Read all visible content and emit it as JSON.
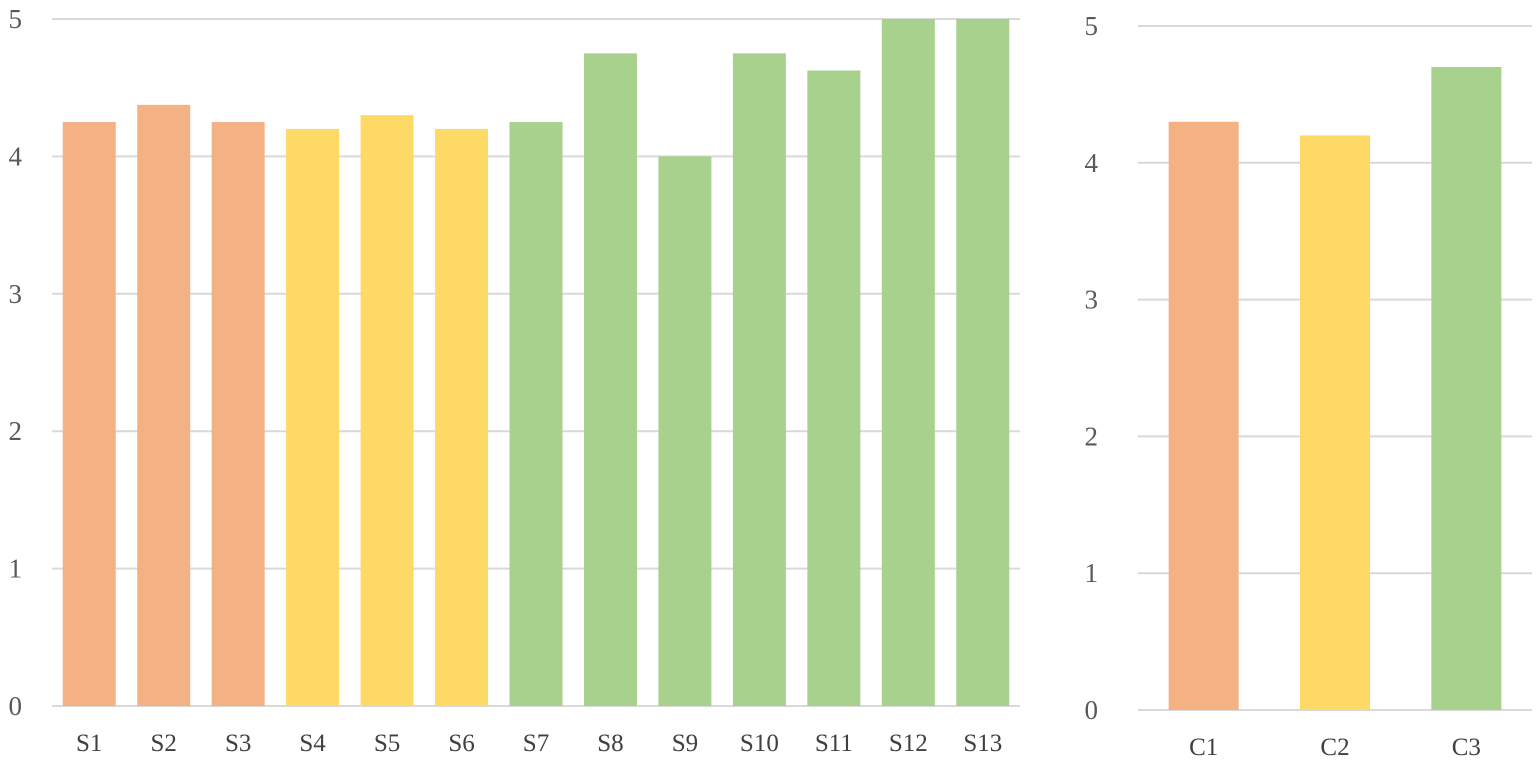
{
  "chart_data": [
    {
      "type": "bar",
      "categories": [
        "S1",
        "S2",
        "S3",
        "S4",
        "S5",
        "S6",
        "S7",
        "S8",
        "S9",
        "S10",
        "S11",
        "S12",
        "S13"
      ],
      "values": [
        4.25,
        4.375,
        4.25,
        4.2,
        4.3,
        4.2,
        4.25,
        4.75,
        4.0,
        4.75,
        4.625,
        5.0,
        5.0
      ],
      "bar_colors": [
        "#f4b183",
        "#f4b183",
        "#f4b183",
        "#ffd966",
        "#ffd966",
        "#ffd966",
        "#a9d18e",
        "#a9d18e",
        "#a9d18e",
        "#a9d18e",
        "#a9d18e",
        "#a9d18e",
        "#a9d18e"
      ],
      "yticks": [
        "0",
        "1",
        "2",
        "3",
        "4",
        "5"
      ],
      "ylim": [
        0,
        5
      ],
      "grid": true,
      "legend": "none",
      "title": "",
      "xlabel": "",
      "ylabel": ""
    },
    {
      "type": "bar",
      "categories": [
        "C1",
        "C2",
        "C3"
      ],
      "values": [
        4.3,
        4.2,
        4.7
      ],
      "bar_colors": [
        "#f4b183",
        "#ffd966",
        "#a9d18e"
      ],
      "yticks": [
        "0",
        "1",
        "2",
        "3",
        "4",
        "5"
      ],
      "ylim": [
        0,
        5
      ],
      "grid": true,
      "legend": "none",
      "title": "",
      "xlabel": "",
      "ylabel": ""
    }
  ]
}
